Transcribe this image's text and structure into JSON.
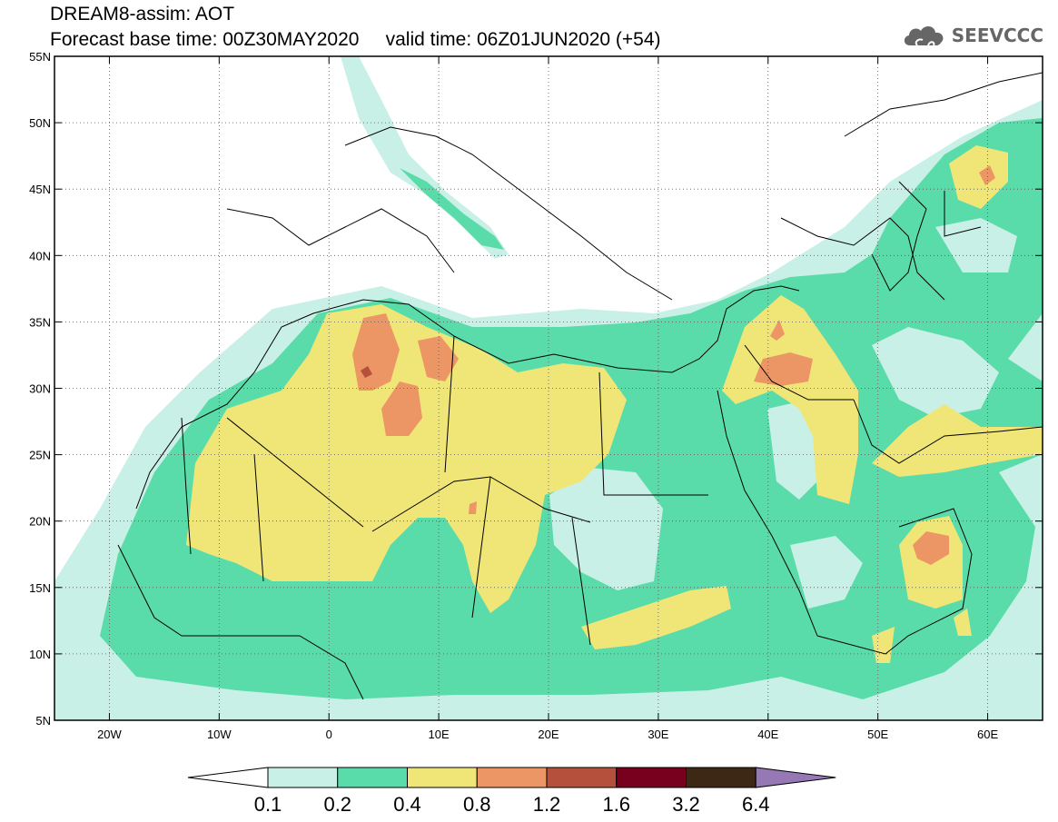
{
  "header": {
    "title_line1": "DREAM8-assim: AOT",
    "title_line2": "Forecast base time: 00Z30MAY2020     valid time: 06Z01JUN2020 (+54)"
  },
  "logo": {
    "text": "SEEVCCC",
    "icon": "cloud-icon",
    "color": "#666666"
  },
  "map": {
    "lat_labels": [
      "55N",
      "50N",
      "45N",
      "40N",
      "35N",
      "30N",
      "25N",
      "20N",
      "15N",
      "10N",
      "5N"
    ],
    "lon_labels": [
      "20W",
      "10W",
      "0",
      "10E",
      "20E",
      "30E",
      "40E",
      "50E",
      "60E"
    ],
    "lat_range": [
      5,
      55
    ],
    "lon_range": [
      -25,
      65
    ],
    "grid": "dotted"
  },
  "colorbar": {
    "colors": [
      "#c8f0e6",
      "#5adcaa",
      "#f0e678",
      "#eb9664",
      "#b4503c",
      "#78001e",
      "#3c2814",
      "#9678b4"
    ],
    "under_color": "#ffffff",
    "tick_labels": [
      "0.1",
      "0.2",
      "0.4",
      "0.8",
      "1.2",
      "1.6",
      "3.2",
      "6.4"
    ]
  }
}
